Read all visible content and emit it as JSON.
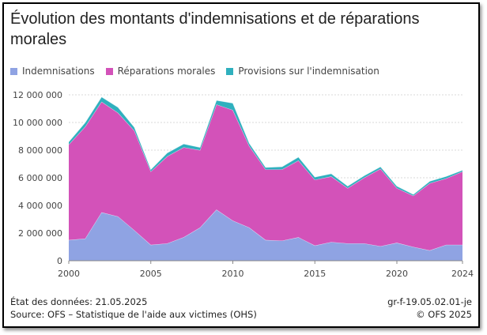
{
  "chart_data": {
    "type": "area",
    "title": "Évolution des montants d'indemnisations et de réparations morales",
    "xlabel": "",
    "ylabel": "",
    "xlim": [
      2000,
      2024
    ],
    "ylim": [
      0,
      12000000
    ],
    "x_ticks": [
      "2000",
      "2005",
      "2010",
      "2015",
      "2020",
      "2024"
    ],
    "y_ticks": [
      "0",
      "2 000 000",
      "4 000 000",
      "6 000 000",
      "8 000 000",
      "10 000 000",
      "12 000 000"
    ],
    "x": [
      2000,
      2001,
      2002,
      2003,
      2004,
      2005,
      2006,
      2007,
      2008,
      2009,
      2010,
      2011,
      2012,
      2013,
      2014,
      2015,
      2016,
      2017,
      2018,
      2019,
      2020,
      2021,
      2022,
      2023,
      2024
    ],
    "stacked": true,
    "series": [
      {
        "name": "Indemnisations",
        "color": "#8fa3e3",
        "values": [
          1500000,
          1600000,
          3500000,
          3200000,
          2200000,
          1150000,
          1250000,
          1700000,
          2400000,
          3700000,
          2900000,
          2400000,
          1500000,
          1450000,
          1700000,
          1100000,
          1350000,
          1250000,
          1250000,
          1050000,
          1300000,
          1000000,
          750000,
          1150000,
          1150000
        ]
      },
      {
        "name": "Réparations morales",
        "color": "#d352b9",
        "values": [
          6900000,
          8100000,
          8000000,
          7500000,
          7200000,
          5300000,
          6300000,
          6500000,
          5600000,
          7600000,
          8000000,
          5900000,
          5100000,
          5150000,
          5550000,
          4750000,
          4750000,
          4000000,
          4750000,
          5600000,
          3950000,
          3700000,
          4850000,
          4800000,
          5300000
        ]
      },
      {
        "name": "Provisions sur l'indemnisation",
        "color": "#2fb0be",
        "values": [
          200000,
          300000,
          350000,
          400000,
          250000,
          150000,
          250000,
          250000,
          200000,
          300000,
          500000,
          200000,
          150000,
          200000,
          250000,
          200000,
          200000,
          150000,
          150000,
          150000,
          150000,
          100000,
          150000,
          150000,
          100000
        ]
      }
    ]
  },
  "footer": {
    "date": "État des données: 21.05.2025",
    "source": "Source: OFS – Statistique de l'aide aux victimes (OHS)",
    "code": "gr-f-19.05.02.01-je",
    "copyright": "© OFS 2025"
  }
}
